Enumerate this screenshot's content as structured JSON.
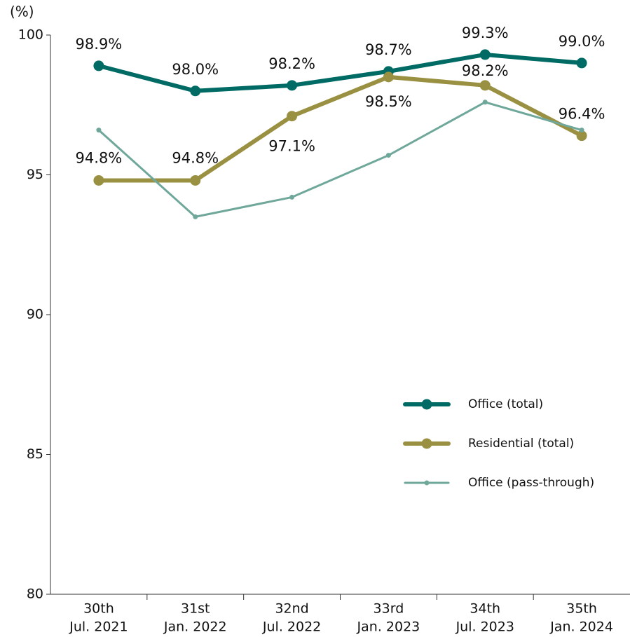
{
  "chart_data": {
    "type": "line",
    "y_axis_label": "(%)",
    "categories": [
      [
        "30th",
        "Jul. 2021"
      ],
      [
        "31st",
        "Jan. 2022"
      ],
      [
        "32nd",
        "Jul. 2022"
      ],
      [
        "33rd",
        "Jan. 2023"
      ],
      [
        "34th",
        "Jul. 2023"
      ],
      [
        "35th",
        "Jan. 2024"
      ]
    ],
    "series": [
      {
        "name": "Office (total)",
        "color": "#006b64",
        "values": [
          98.9,
          98.0,
          98.2,
          98.7,
          99.3,
          99.0
        ],
        "value_labels": [
          "98.9%",
          "98.0%",
          "98.2%",
          "98.7%",
          "99.3%",
          "99.0%"
        ]
      },
      {
        "name": "Residential (total)",
        "color": "#9a9042",
        "values": [
          94.8,
          94.8,
          97.1,
          98.5,
          98.2,
          96.4
        ],
        "value_labels": [
          "94.8%",
          "94.8%",
          "97.1%",
          "98.5%",
          "98.2%",
          "96.4%"
        ]
      },
      {
        "name": "Office (pass-through)",
        "color": "#6fa89a",
        "values": [
          96.6,
          93.5,
          94.2,
          95.7,
          97.6,
          96.6
        ]
      }
    ],
    "ylim": [
      80,
      100
    ],
    "yticks": [
      80,
      85,
      90,
      95,
      100
    ],
    "grid": false,
    "legend": "lower right"
  }
}
